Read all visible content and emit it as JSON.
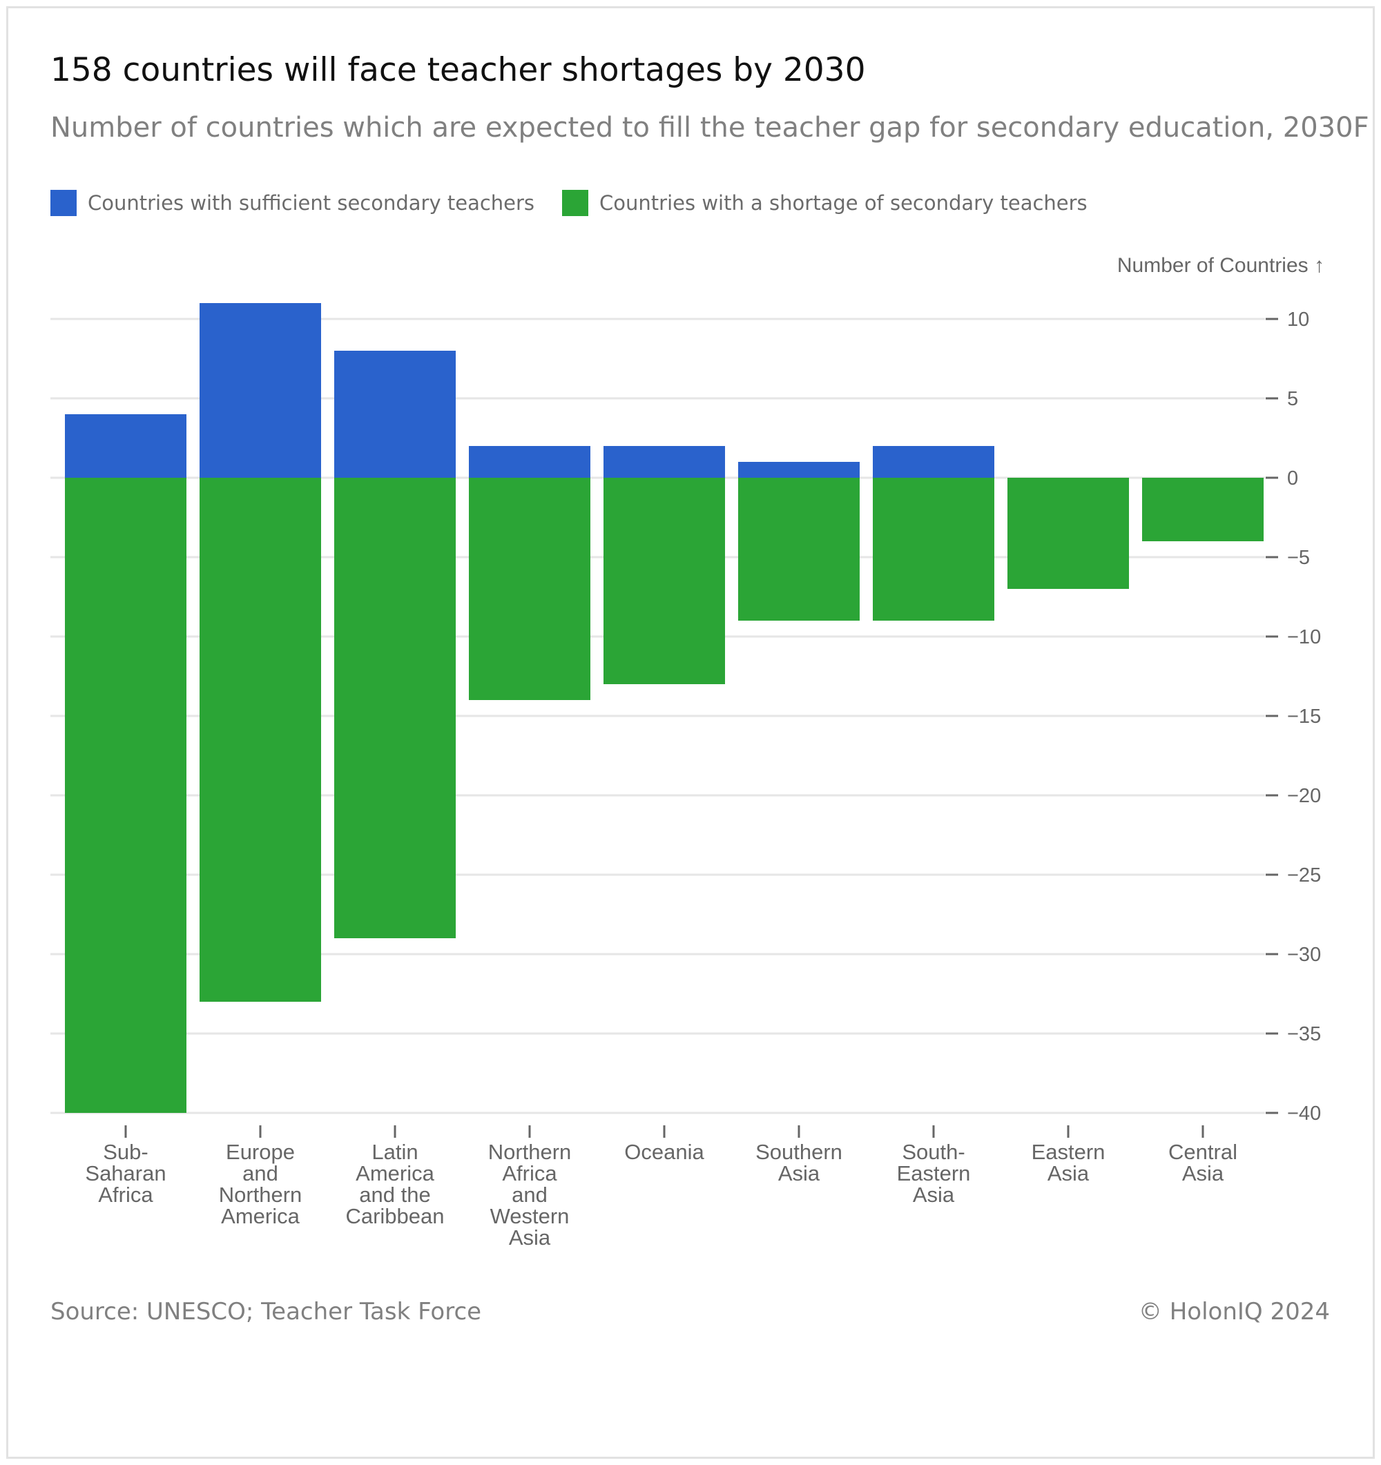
{
  "title": "158 countries will face teacher shortages by 2030",
  "subtitle": "Number of countries which are expected to fill the teacher gap for secondary education, 2030F",
  "legend": [
    {
      "label": "Countries with sufficient secondary teachers",
      "color": "#2a62cc"
    },
    {
      "label": "Countries with a shortage of secondary teachers",
      "color": "#2ba536"
    }
  ],
  "footer": {
    "source": "Source: UNESCO; Teacher Task Force",
    "copyright": "© HolonIQ 2024"
  },
  "chart_data": {
    "type": "bar",
    "stacking": "diverging",
    "title": "158 countries will face teacher shortages by 2030",
    "ylabel": "Number of Countries ↑",
    "xlabel": "",
    "ylim": [
      -40,
      12
    ],
    "yticks": [
      10,
      5,
      0,
      -5,
      -10,
      -15,
      -20,
      -25,
      -30,
      -35,
      -40
    ],
    "ytick_labels": [
      "10",
      "5",
      "0",
      "−5",
      "−10",
      "−15",
      "−20",
      "−25",
      "−30",
      "−35",
      "−40"
    ],
    "categories": [
      [
        "Sub-",
        "Saharan",
        "Africa"
      ],
      [
        "Europe",
        "and",
        "Northern",
        "America"
      ],
      [
        "Latin",
        "America",
        "and the",
        "Caribbean"
      ],
      [
        "Northern",
        "Africa",
        "and",
        "Western",
        "Asia"
      ],
      [
        "Oceania"
      ],
      [
        "Southern",
        "Asia"
      ],
      [
        "South-",
        "Eastern",
        "Asia"
      ],
      [
        "Eastern",
        "Asia"
      ],
      [
        "Central",
        "Asia"
      ]
    ],
    "series": [
      {
        "name": "Countries with sufficient secondary teachers",
        "color": "#2a62cc",
        "values": [
          4,
          11,
          8,
          2,
          2,
          1,
          2,
          0,
          0
        ]
      },
      {
        "name": "Countries with a shortage of secondary teachers",
        "color": "#2ba536",
        "values": [
          -40,
          -33,
          -29,
          -14,
          -13,
          -9,
          -9,
          -7,
          -4
        ]
      }
    ],
    "grid": true,
    "legend_position": "top-left"
  }
}
